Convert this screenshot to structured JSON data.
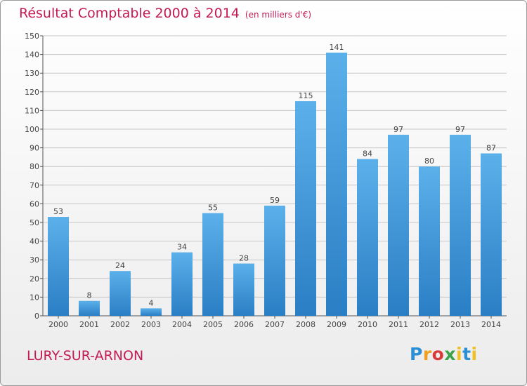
{
  "header": {
    "title": "Résultat Comptable 2000 à 2014",
    "unit": "(en milliers d'€)"
  },
  "footer": {
    "commune": "LURY-SUR-ARNON",
    "logo": "Proxiti"
  },
  "colors": {
    "bar_light": "#5cb0ea",
    "bar_dark": "#2a7ec4",
    "title": "#c21a55"
  },
  "chart_data": {
    "type": "bar",
    "title": "Résultat Comptable 2000 à 2014",
    "subtitle": "(en milliers d'€)",
    "xlabel": "",
    "ylabel": "",
    "categories": [
      "2000",
      "2001",
      "2002",
      "2003",
      "2004",
      "2005",
      "2006",
      "2007",
      "2008",
      "2009",
      "2010",
      "2011",
      "2012",
      "2013",
      "2014"
    ],
    "values": [
      53,
      8,
      24,
      4,
      34,
      55,
      28,
      59,
      115,
      141,
      84,
      97,
      80,
      97,
      87
    ],
    "ylim": [
      0,
      150
    ],
    "yticks": [
      0,
      10,
      20,
      30,
      40,
      50,
      60,
      70,
      80,
      90,
      100,
      110,
      120,
      130,
      140,
      150
    ],
    "grid": true,
    "legend": "none"
  }
}
